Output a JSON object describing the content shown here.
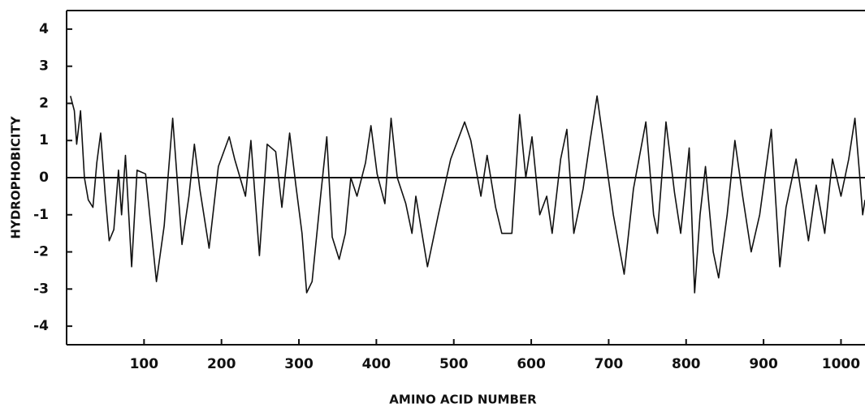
{
  "chart_data": {
    "type": "line",
    "xlabel": "AMINO ACID NUMBER",
    "ylabel": "HYDROPHOBICITY",
    "x": [
      5,
      10,
      13,
      18,
      23,
      28,
      34,
      39,
      44,
      50,
      55,
      61,
      67,
      71,
      76,
      84,
      91,
      102,
      116,
      126,
      137,
      149,
      158,
      165,
      172,
      184,
      196,
      210,
      217,
      231,
      238,
      249,
      259,
      270,
      278,
      288,
      296,
      304,
      310,
      317,
      328,
      336,
      343,
      352,
      360,
      367,
      375,
      386,
      393,
      401,
      411,
      419,
      427,
      438,
      446,
      451,
      466,
      480,
      496,
      514,
      522,
      535,
      543,
      554,
      562,
      575,
      585,
      593,
      601,
      611,
      620,
      627,
      638,
      646,
      655,
      667,
      676,
      685,
      693,
      706,
      720,
      732,
      748,
      758,
      763,
      774,
      785,
      793,
      804,
      811,
      818,
      825,
      835,
      842,
      853,
      863,
      873,
      884,
      895,
      910,
      921,
      929,
      942,
      958,
      968,
      979,
      989,
      1000,
      1010,
      1018,
      1024,
      1028,
      1031
    ],
    "series": [
      {
        "color": "#111111",
        "values": [
          2.2,
          1.8,
          0.9,
          1.8,
          0.0,
          -0.6,
          -0.8,
          0.4,
          1.2,
          -0.5,
          -1.7,
          -1.4,
          0.2,
          -1.0,
          0.6,
          -2.4,
          0.2,
          0.1,
          -2.8,
          -1.3,
          1.6,
          -1.8,
          -0.5,
          0.9,
          -0.3,
          -1.9,
          0.3,
          1.1,
          0.5,
          -0.5,
          1.0,
          -2.1,
          0.9,
          0.7,
          -0.8,
          1.2,
          -0.2,
          -1.5,
          -3.1,
          -2.8,
          -0.5,
          1.1,
          -1.6,
          -2.2,
          -1.5,
          0.0,
          -0.5,
          0.4,
          1.4,
          0.1,
          -0.7,
          1.6,
          0.0,
          -0.7,
          -1.5,
          -0.5,
          -2.4,
          -1.0,
          0.5,
          1.5,
          1.0,
          -0.5,
          0.6,
          -0.8,
          -1.5,
          -1.5,
          1.7,
          0.0,
          1.1,
          -1.0,
          -0.5,
          -1.5,
          0.5,
          1.3,
          -1.5,
          -0.3,
          1.0,
          2.2,
          1.0,
          -1.0,
          -2.6,
          -0.3,
          1.5,
          -1.0,
          -1.5,
          1.5,
          -0.4,
          -1.5,
          0.8,
          -3.1,
          -1.0,
          0.3,
          -2.0,
          -2.7,
          -1.0,
          1.0,
          -0.5,
          -2.0,
          -1.0,
          1.3,
          -2.4,
          -0.8,
          0.5,
          -1.7,
          -0.2,
          -1.5,
          0.5,
          -0.5,
          0.5,
          1.6,
          0.1,
          -1.0,
          -0.6
        ]
      }
    ],
    "hline": 0,
    "xlim": [
      0,
      1031
    ],
    "ylim": [
      -4.5,
      4.5
    ],
    "xticks": [
      100,
      200,
      300,
      400,
      500,
      600,
      700,
      800,
      900,
      1000
    ],
    "yticks": [
      4,
      3,
      2,
      1,
      0,
      -1,
      -2,
      -3,
      -4
    ]
  }
}
